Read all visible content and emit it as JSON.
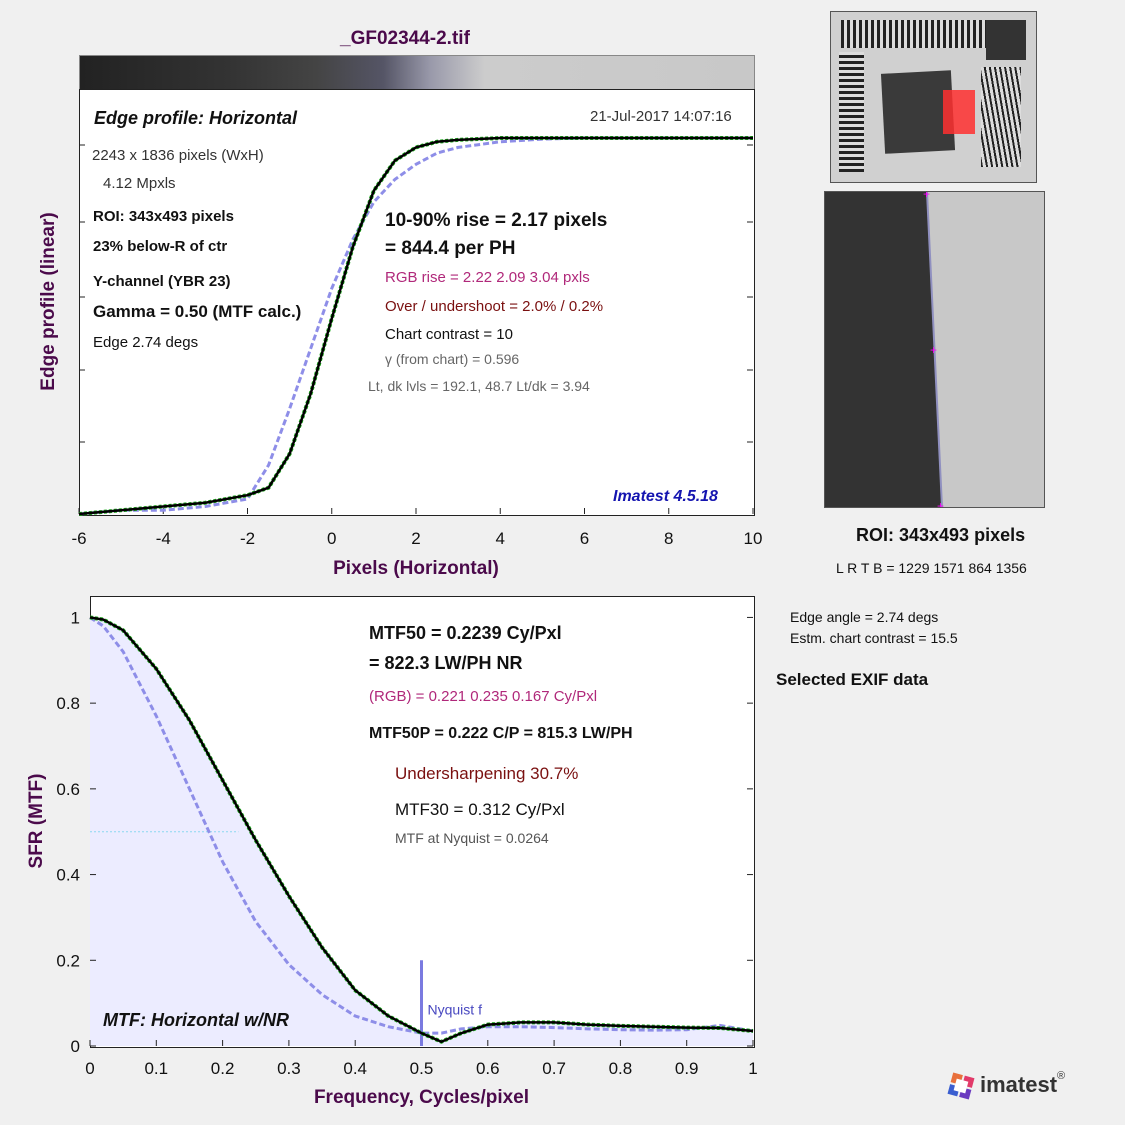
{
  "title": "_GF02344-2.tif",
  "edge": {
    "panel_title": "Edge profile: Horizontal",
    "date": "21-Jul-2017 14:07:16",
    "info": [
      "2243 x 1836 pixels (WxH)",
      "4.12 Mpxls",
      "ROI:  343x493 pixels",
      "23% below-R of ctr",
      "Y-channel  (YBR 23)",
      "Gamma = 0.50 (MTF calc.)",
      "Edge   2.74 degs"
    ],
    "rise": "10-90% rise = 2.17 pixels",
    "per_ph": "=  844.4 per PH",
    "rgb_rise": "RGB rise =   2.22    2.09     3.04 pxls",
    "overshoot": "Over / undershoot =  2.0% /  0.2%",
    "contrast": "Chart contrast = 10",
    "gamma": "γ (from chart) = 0.596",
    "levels": "Lt, dk lvls =  192.1,   48.7   Lt/dk =   3.94",
    "version": "Imatest 4.5.18",
    "xlabel": "Pixels (Horizontal)",
    "ylabel": "Edge profile (linear)"
  },
  "mtf": {
    "mtf50": "MTF50 = 0.2239 Cy/Pxl",
    "lwph": "= 822.3 LW/PH  NR",
    "rgb": "(RGB) = 0.221  0.235  0.167 Cy/Pxl",
    "mtf50p": "MTF50P = 0.222 C/P = 815.3 LW/PH",
    "undersharp": "Undersharpening 30.7%",
    "mtf30": "MTF30 = 0.312 Cy/Pxl",
    "nyq": "MTF at Nyquist = 0.0264",
    "nyq_label": "Nyquist f",
    "panel_title": "MTF: Horizontal w/NR",
    "xlabel": "Frequency, Cycles/pixel",
    "ylabel": "SFR (MTF)"
  },
  "roi": {
    "title": "ROI:  343x493 pixels",
    "coords": "L R  T B = 1229 1571  864 1356"
  },
  "side": {
    "edge_angle": "Edge angle = 2.74 degs",
    "estm": "Estm. chart contrast = 15.5",
    "exif": "Selected EXIF data"
  },
  "logo": "imatest",
  "colors": {
    "black": "#000000",
    "red": "#e8463c",
    "green": "#1aa81a",
    "blue": "#8e8ee8",
    "title": "#4b0a4b"
  },
  "chart_data": [
    {
      "type": "line",
      "x": [
        -6,
        -5,
        -4,
        -3,
        -2,
        -1.5,
        -1,
        -0.5,
        0,
        0.5,
        1,
        1.5,
        2,
        2.5,
        3,
        4,
        5,
        6,
        7,
        8,
        9,
        10
      ],
      "series": [
        {
          "values": [
            0.0,
            0.01,
            0.02,
            0.03,
            0.05,
            0.07,
            0.16,
            0.32,
            0.52,
            0.71,
            0.86,
            0.94,
            0.975,
            0.99,
            0.995,
            1.0,
            1.0,
            1.0,
            1.0,
            1.0,
            1.0,
            1.0
          ]
        },
        {
          "values": [
            0.0,
            0.01,
            0.01,
            0.02,
            0.04,
            0.13,
            0.28,
            0.44,
            0.6,
            0.73,
            0.83,
            0.89,
            0.93,
            0.96,
            0.975,
            0.99,
            0.997,
            1.0,
            1.0,
            1.0,
            1.0,
            1.0
          ]
        }
      ],
      "xlim": [
        -6,
        10
      ],
      "xticks": [
        -6,
        -4,
        -2,
        0,
        2,
        4,
        6,
        8,
        10
      ]
    },
    {
      "type": "line",
      "x": [
        0,
        0.02,
        0.05,
        0.1,
        0.15,
        0.2,
        0.25,
        0.3,
        0.35,
        0.4,
        0.45,
        0.5,
        0.53,
        0.56,
        0.6,
        0.65,
        0.7,
        0.75,
        0.8,
        0.85,
        0.9,
        0.95,
        1.0
      ],
      "series": [
        {
          "values": [
            1.0,
            0.995,
            0.97,
            0.88,
            0.76,
            0.62,
            0.48,
            0.35,
            0.23,
            0.13,
            0.07,
            0.03,
            0.01,
            0.03,
            0.05,
            0.055,
            0.055,
            0.05,
            0.047,
            0.045,
            0.043,
            0.042,
            0.035
          ]
        },
        {
          "values": [
            1.0,
            0.98,
            0.92,
            0.77,
            0.6,
            0.43,
            0.29,
            0.19,
            0.12,
            0.07,
            0.045,
            0.03,
            0.03,
            0.04,
            0.045,
            0.045,
            0.043,
            0.04,
            0.038,
            0.037,
            0.038,
            0.048,
            0.035
          ]
        }
      ],
      "xlim": [
        0,
        1
      ],
      "ylim": [
        0,
        1.05
      ],
      "xticks": [
        0,
        0.1,
        0.2,
        0.3,
        0.4,
        0.5,
        0.6,
        0.7,
        0.8,
        0.9,
        1
      ],
      "yticks": [
        0,
        0.2,
        0.4,
        0.6,
        0.8,
        1
      ],
      "nyquist": 0.5
    }
  ]
}
